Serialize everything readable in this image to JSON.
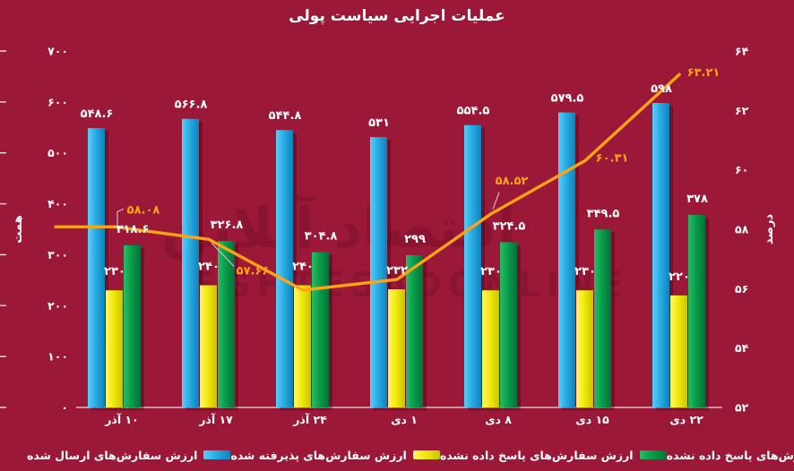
{
  "page": {
    "background": "#9C1838",
    "text_color": "#FFFFFF"
  },
  "chart_data": {
    "type": "combo_bar_line",
    "title": "عملیات اجرایی سیاست پولی",
    "categories": [
      "۱۰ آذر",
      "۱۷ آذر",
      "۲۴ آذر",
      "۱ دی",
      "۸ دی",
      "۱۵ دی",
      "۲۲ دی"
    ],
    "left_axis": {
      "label": "همت",
      "min": 0,
      "max": 700,
      "tick_step": 100,
      "tick_labels": [
        "۷۰۰",
        "۶۰۰",
        "۵۰۰",
        "۴۰۰",
        "۳۰۰",
        "۲۰۰",
        "۱۰۰",
        "۰"
      ],
      "tick_values": [
        700,
        600,
        500,
        400,
        300,
        200,
        100,
        0
      ]
    },
    "right_axis": {
      "label": "درصد",
      "min": 52,
      "max": 64,
      "tick_step": 2,
      "tick_labels": [
        "۶۴",
        "۶۲",
        "۶۰",
        "۵۸",
        "۵۶",
        "۵۴",
        "۵۲"
      ],
      "tick_values": [
        64,
        62,
        60,
        58,
        56,
        54,
        52
      ]
    },
    "series": [
      {
        "name": "ارزش سفارش‌های ارسال شده",
        "type": "bar",
        "axis": "left",
        "color": "#29ABE2",
        "values": [
          548.6,
          566.8,
          544.8,
          531,
          554.5,
          579.5,
          598
        ],
        "value_labels": [
          "۵۴۸.۶",
          "۵۶۶.۸",
          "۵۴۴.۸",
          "۵۳۱",
          "۵۵۴.۵",
          "۵۷۹.۵",
          "۵۹۸"
        ]
      },
      {
        "name": "ارزش سفارش‌های پذیرفته شده",
        "type": "bar",
        "axis": "left",
        "color": "#F1E90B",
        "values": [
          230,
          240,
          240,
          232,
          230,
          230,
          220
        ],
        "value_labels": [
          "۲۳۰",
          "۲۴۰",
          "۲۴۰",
          "۲۳۲",
          "۲۳۰",
          "۲۳۰",
          "۲۲۰"
        ]
      },
      {
        "name": "ارزش سفارش‌های پاسخ داده نشده",
        "type": "bar",
        "axis": "left",
        "color": "#099D4A",
        "values": [
          318.6,
          326.8,
          304.8,
          299,
          324.5,
          349.5,
          378
        ],
        "value_labels": [
          "۳۱۸.۶",
          "۳۲۶.۸",
          "۳۰۴.۸",
          "۲۹۹",
          "۳۲۴.۵",
          "۳۴۹.۵",
          "۳۷۸"
        ]
      },
      {
        "name": "درصد سفارش‌های پاسخ داده نشده",
        "type": "line",
        "axis": "right",
        "color": "#FDA414",
        "values": [
          58.08,
          57.66,
          55.95,
          56.31,
          58.52,
          60.31,
          63.21
        ],
        "value_labels": [
          "۵۸.۰۸",
          "۵۷.۶۶",
          "",
          "",
          "۵۸.۵۲",
          "۶۰.۳۱",
          "۶۳.۲۱"
        ]
      }
    ],
    "legend_position": "bottom",
    "grid": false,
    "watermark": {
      "fa": "اقتصاد آنلاین",
      "en": "EGHTESADONLINE"
    }
  }
}
